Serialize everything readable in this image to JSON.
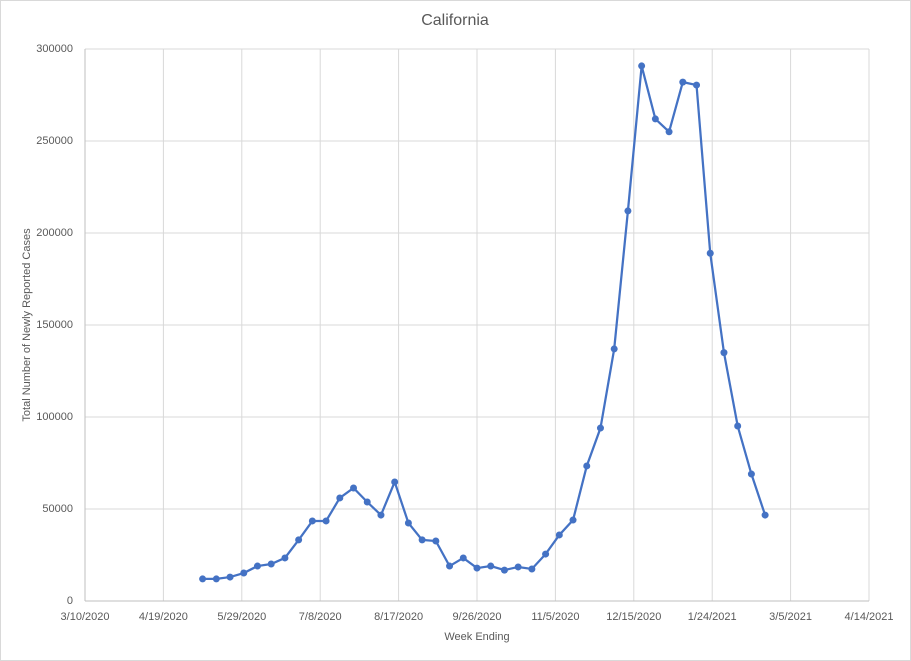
{
  "chart_data": {
    "type": "line",
    "title": "California",
    "x_label": "Week Ending",
    "y_label": "Total Number  of Newly Reported  Cases",
    "x": [
      "2020-05-09",
      "2020-05-16",
      "2020-05-23",
      "2020-05-30",
      "2020-06-06",
      "2020-06-13",
      "2020-06-20",
      "2020-06-27",
      "2020-07-04",
      "2020-07-11",
      "2020-07-18",
      "2020-07-25",
      "2020-08-01",
      "2020-08-08",
      "2020-08-15",
      "2020-08-22",
      "2020-08-29",
      "2020-09-05",
      "2020-09-12",
      "2020-09-19",
      "2020-09-26",
      "2020-10-03",
      "2020-10-10",
      "2020-10-17",
      "2020-10-24",
      "2020-10-31",
      "2020-11-07",
      "2020-11-14",
      "2020-11-21",
      "2020-11-28",
      "2020-12-05",
      "2020-12-12",
      "2020-12-19",
      "2020-12-26",
      "2021-01-02",
      "2021-01-09",
      "2021-01-16",
      "2021-01-23",
      "2021-01-30",
      "2021-02-06",
      "2021-02-13",
      "2021-02-20"
    ],
    "series": [
      {
        "color": "#4472c4",
        "values": [
          12000,
          12000,
          13000,
          15200,
          19000,
          20100,
          23400,
          33200,
          43500,
          43500,
          56000,
          61400,
          53800,
          46700,
          64700,
          42400,
          33200,
          32600,
          19000,
          23400,
          17900,
          19000,
          16800,
          18500,
          17400,
          25500,
          35900,
          44000,
          73400,
          94000,
          137000,
          212000,
          290800,
          262000,
          255000,
          282000,
          280400,
          189000,
          135000,
          95100,
          69000,
          46700
        ]
      }
    ],
    "xlim": [
      "2020-03-10",
      "2021-04-14"
    ],
    "xticks": [
      {
        "value": "2020-03-10",
        "label": "3/10/2020"
      },
      {
        "value": "2020-04-19",
        "label": "4/19/2020"
      },
      {
        "value": "2020-05-29",
        "label": "5/29/2020"
      },
      {
        "value": "2020-07-08",
        "label": "7/8/2020"
      },
      {
        "value": "2020-08-17",
        "label": "8/17/2020"
      },
      {
        "value": "2020-09-26",
        "label": "9/26/2020"
      },
      {
        "value": "2020-11-05",
        "label": "11/5/2020"
      },
      {
        "value": "2020-12-15",
        "label": "12/15/2020"
      },
      {
        "value": "2021-01-24",
        "label": "1/24/2021"
      },
      {
        "value": "2021-03-05",
        "label": "3/5/2021"
      },
      {
        "value": "2021-04-14",
        "label": "4/14/2021"
      }
    ],
    "ylim": [
      0,
      300000
    ],
    "yticks": [
      0,
      50000,
      100000,
      150000,
      200000,
      250000,
      300000
    ],
    "grid": true
  }
}
